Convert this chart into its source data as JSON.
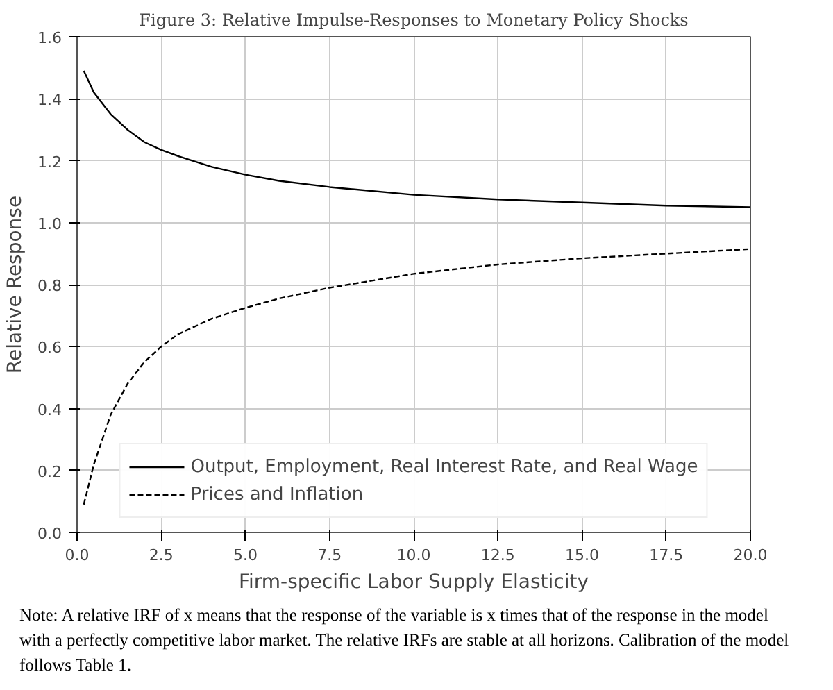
{
  "chart_data": {
    "type": "line",
    "title": "Figure 3: Relative Impulse-Responses to Monetary Policy Shocks",
    "xlabel": "Firm-specific Labor Supply Elasticity",
    "ylabel": "Relative Response",
    "x": [
      0.2,
      0.5,
      1,
      1.5,
      2,
      2.5,
      3,
      4,
      5,
      6,
      7.5,
      10,
      12.5,
      15,
      17.5,
      20
    ],
    "series": [
      {
        "name": "Output, Employment, Real Interest Rate, and Real Wage",
        "color": "#000000",
        "line_style": "solid",
        "values": [
          1.49,
          1.42,
          1.35,
          1.3,
          1.26,
          1.235,
          1.215,
          1.18,
          1.155,
          1.135,
          1.115,
          1.09,
          1.075,
          1.065,
          1.055,
          1.05
        ]
      },
      {
        "name": "Prices and Inflation",
        "color": "#000000",
        "line_style": "dashed",
        "values": [
          0.09,
          0.22,
          0.38,
          0.48,
          0.55,
          0.6,
          0.64,
          0.69,
          0.725,
          0.755,
          0.79,
          0.835,
          0.865,
          0.885,
          0.9,
          0.915
        ]
      }
    ],
    "xlim": [
      0,
      20
    ],
    "xticks": [
      {
        "value": 0,
        "label": "0.0"
      },
      2.5,
      {
        "value": 5,
        "label": "5.0"
      },
      7.5,
      {
        "value": 10,
        "label": "10.0"
      },
      12.5,
      {
        "value": 15,
        "label": "15.0"
      },
      17.5,
      {
        "value": 20,
        "label": "20.0"
      }
    ],
    "ylim": [
      0,
      1.6
    ],
    "yticks": [
      {
        "value": 0,
        "label": "0.0"
      },
      0.2,
      0.4,
      0.6,
      0.8,
      {
        "value": 1,
        "label": "1.0"
      },
      1.2,
      1.4,
      1.6
    ],
    "grid": true,
    "legend": "bottom",
    "annotations": [
      "Note: A relative IRF of x means that the response of the variable is x times that of the response in the model with a perfectly competitive labor market. The relative IRFs are stable at all horizons. Calibration of the model follows Table 1."
    ]
  }
}
